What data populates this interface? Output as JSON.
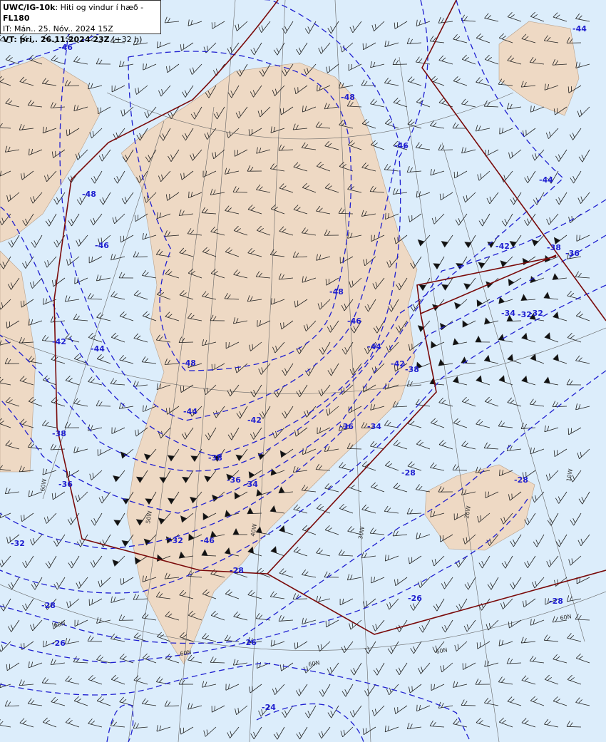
{
  "header": {
    "product": "UWC/IG-10k",
    "description": ": Hiti og vindur í hæð - ",
    "level": "FL180",
    "issue_time": "IT: Mán.. 25. Nóv.. 2024 15Z",
    "valid_label": "VT: þri.. 26.11.2024 23Z",
    "valid_offset": " (+32 h)"
  },
  "colors": {
    "sea": "#dcedfb",
    "land": "#eed9c4",
    "contour": "#1f1fd0",
    "boundary": "#7a0a0a",
    "barb": "#222222"
  },
  "map": {
    "contour_labels": [
      "-46",
      "-48",
      "-48",
      "-46",
      "-44",
      "-46",
      "-44",
      "-42",
      "-38",
      "-36",
      "-42",
      "-44",
      "-48",
      "-48",
      "-46",
      "-44",
      "-42",
      "-38",
      "-36",
      "-34",
      "-32",
      "-46",
      "-44",
      "-42",
      "-38",
      "-36",
      "-34",
      "-32",
      "-34",
      "-32",
      "-28",
      "-28",
      "-38",
      "-36",
      "-32",
      "-28",
      "-28",
      "-26",
      "-28",
      "-26",
      "-26",
      "-24"
    ],
    "graticule_labels": [
      "60N",
      "60N",
      "60N",
      "60N",
      "60N",
      "60W",
      "50W",
      "40W",
      "30W",
      "20W",
      "10W"
    ]
  }
}
